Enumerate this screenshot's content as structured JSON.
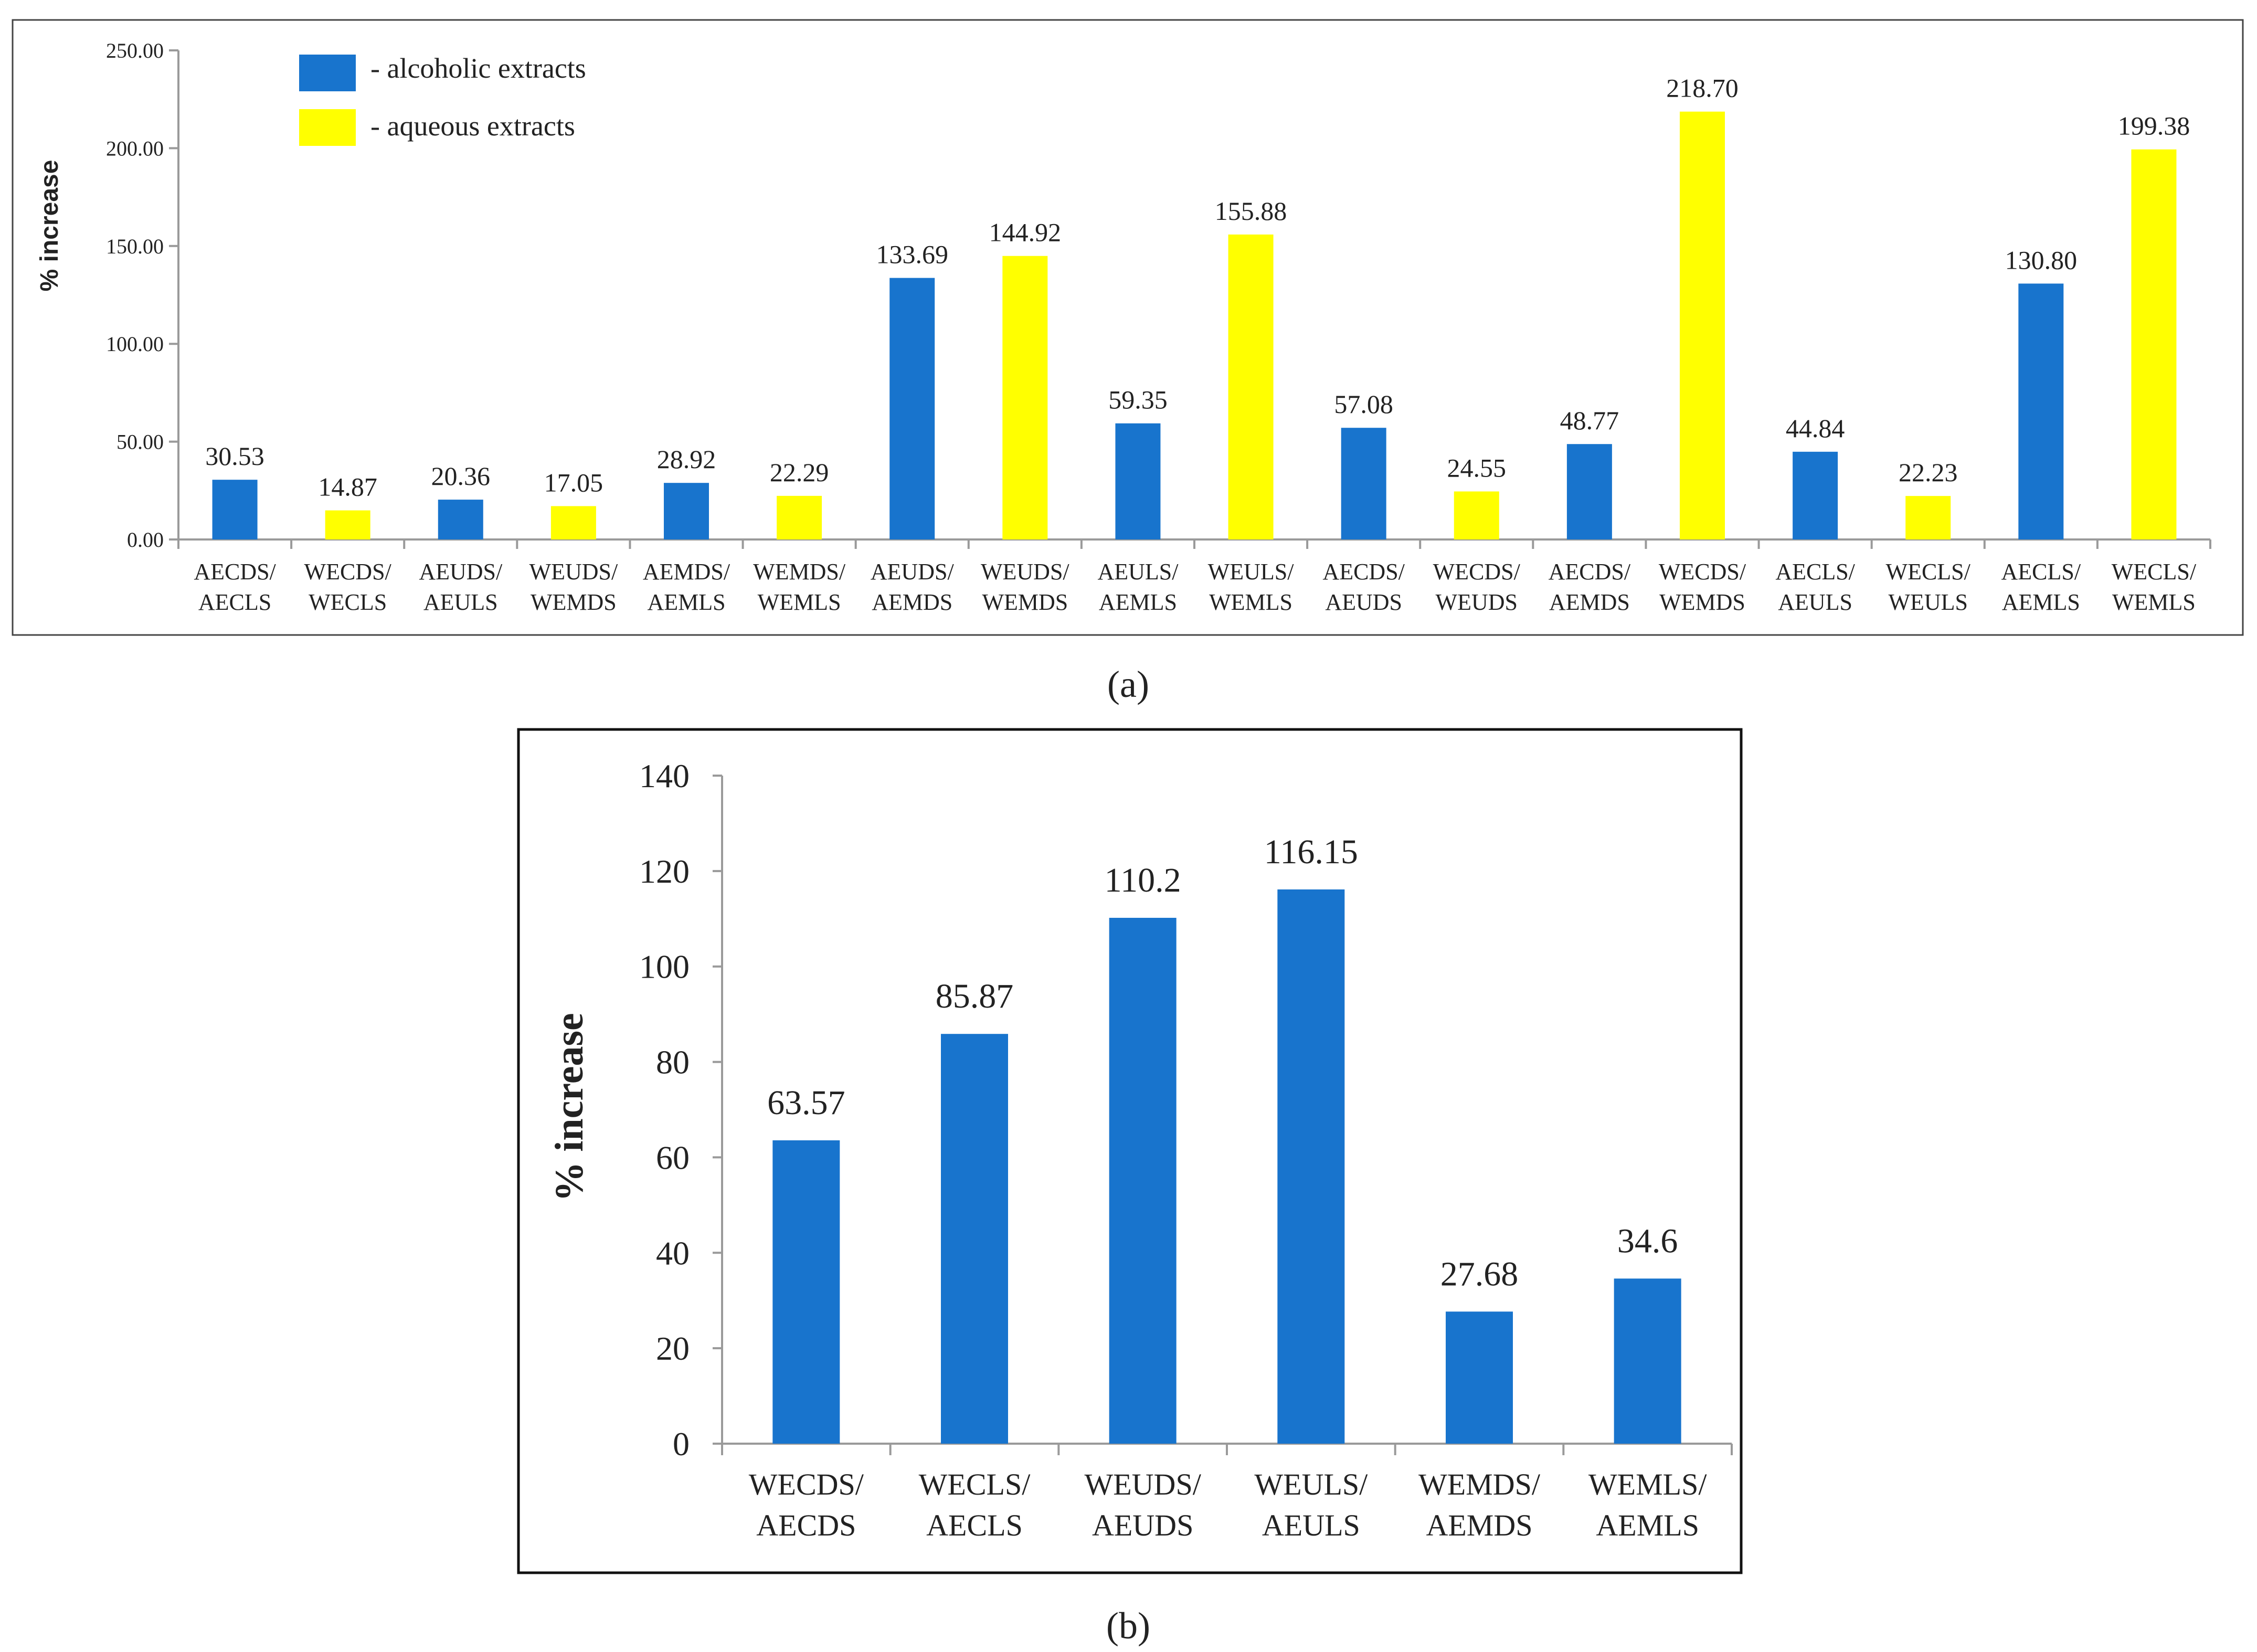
{
  "panel_labels": {
    "a": "(a)",
    "b": "(b)"
  },
  "colors": {
    "alcoholic": "#1874CD",
    "aqueous": "#FFFF00",
    "axis": "#9a9a9a",
    "frame": "#222222"
  },
  "chart_data": [
    {
      "id": "a",
      "type": "bar",
      "ylabel": "% increase",
      "ylim": [
        0,
        250
      ],
      "yticks": [
        "0.00",
        "50.00",
        "100.00",
        "150.00",
        "200.00",
        "250.00"
      ],
      "legend": [
        {
          "label": "- alcoholic extracts",
          "series": "alcoholic"
        },
        {
          "label": "- aqueous extracts",
          "series": "aqueous"
        }
      ],
      "categories": [
        [
          "AECDS/",
          "AECLS"
        ],
        [
          "WECDS/",
          "WECLS"
        ],
        [
          "AEUDS/",
          "AEULS"
        ],
        [
          "WEUDS/",
          "WEMDS"
        ],
        [
          "AEMDS/",
          "AEMLS"
        ],
        [
          "WEMDS/",
          "WEMLS"
        ],
        [
          "AEUDS/",
          "AEMDS"
        ],
        [
          "WEUDS/",
          "WEMDS"
        ],
        [
          "AEULS/",
          "AEMLS"
        ],
        [
          "WEULS/",
          "WEMLS"
        ],
        [
          "AECDS/",
          "AEUDS"
        ],
        [
          "WECDS/",
          "WEUDS"
        ],
        [
          "AECDS/",
          "AEMDS"
        ],
        [
          "WECDS/",
          "WEMDS"
        ],
        [
          "AECLS/",
          "AEULS"
        ],
        [
          "WECLS/",
          "WEULS"
        ],
        [
          "AECLS/",
          "AEMLS"
        ],
        [
          "WECLS/",
          "WEMLS"
        ]
      ],
      "values": [
        30.53,
        14.87,
        20.36,
        17.05,
        28.92,
        22.29,
        133.69,
        144.92,
        59.35,
        155.88,
        57.08,
        24.55,
        48.77,
        218.7,
        44.84,
        22.23,
        130.8,
        199.38
      ],
      "labels": [
        "30.53",
        "14.87",
        "20.36",
        "17.05",
        "28.92",
        "22.29",
        "133.69",
        "144.92",
        "59.35",
        "155.88",
        "57.08",
        "24.55",
        "48.77",
        "218.70",
        "44.84",
        "22.23",
        "130.80",
        "199.38"
      ],
      "series_of_bar": [
        "alcoholic",
        "aqueous",
        "alcoholic",
        "aqueous",
        "alcoholic",
        "aqueous",
        "alcoholic",
        "aqueous",
        "alcoholic",
        "aqueous",
        "alcoholic",
        "aqueous",
        "alcoholic",
        "aqueous",
        "alcoholic",
        "aqueous",
        "alcoholic",
        "aqueous"
      ]
    },
    {
      "id": "b",
      "type": "bar",
      "ylabel": "% increase",
      "ylim": [
        0,
        140
      ],
      "yticks": [
        "0",
        "20",
        "40",
        "60",
        "80",
        "100",
        "120",
        "140"
      ],
      "categories": [
        [
          "WECDS/",
          "AECDS"
        ],
        [
          "WECLS/",
          "AECLS"
        ],
        [
          "WEUDS/",
          "AEUDS"
        ],
        [
          "WEULS/",
          "AEULS"
        ],
        [
          "WEMDS/",
          "AEMDS"
        ],
        [
          "WEMLS/",
          "AEMLS"
        ]
      ],
      "values": [
        63.57,
        85.87,
        110.2,
        116.15,
        27.68,
        34.6
      ],
      "labels": [
        "63.57",
        "85.87",
        "110.2",
        "116.15",
        "27.68",
        "34.6"
      ],
      "series_of_bar": [
        "alcoholic",
        "alcoholic",
        "alcoholic",
        "alcoholic",
        "alcoholic",
        "alcoholic"
      ]
    }
  ]
}
